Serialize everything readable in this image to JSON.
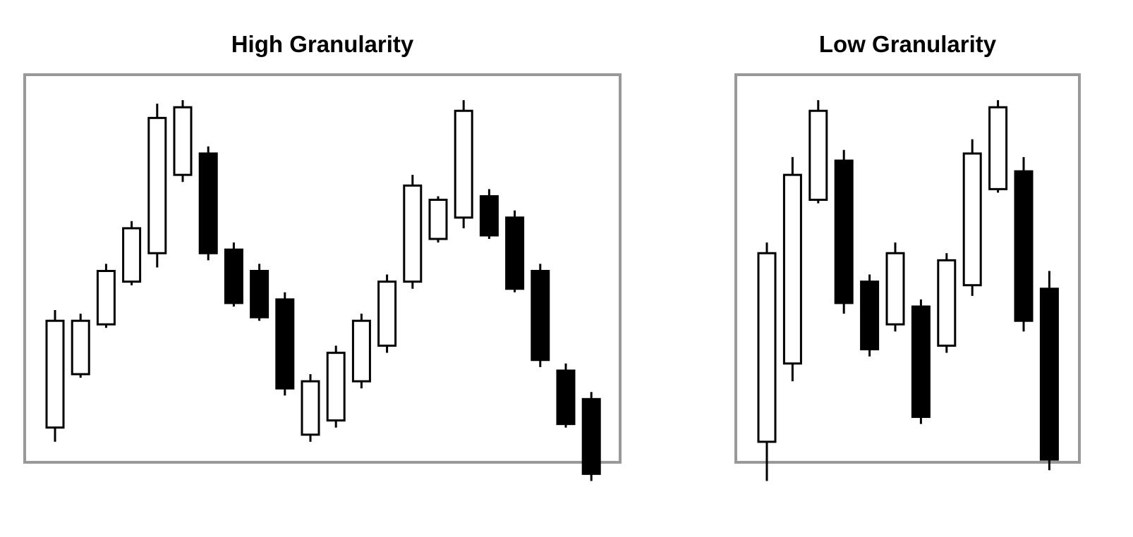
{
  "colors": {
    "frame": "#999999",
    "bullish_fill": "#ffffff",
    "bearish_fill": "#000000",
    "outline": "#000000"
  },
  "chart_data": [
    {
      "type": "candlestick",
      "title": "High Granularity",
      "ylim": [
        0,
        100
      ],
      "grid": false,
      "candles": [
        {
          "open": 6.0,
          "close": 36.0,
          "high": 39.0,
          "low": 2.0
        },
        {
          "open": 21.0,
          "close": 36.0,
          "high": 38.0,
          "low": 20.0
        },
        {
          "open": 35.0,
          "close": 50.0,
          "high": 52.0,
          "low": 34.0
        },
        {
          "open": 47.0,
          "close": 62.0,
          "high": 64.0,
          "low": 46.0
        },
        {
          "open": 55.0,
          "close": 93.0,
          "high": 97.0,
          "low": 51.0
        },
        {
          "open": 77.0,
          "close": 96.0,
          "high": 98.0,
          "low": 75.0
        },
        {
          "open": 83.0,
          "close": 55.0,
          "high": 85.0,
          "low": 53.0
        },
        {
          "open": 56.0,
          "close": 41.0,
          "high": 58.0,
          "low": 40.0
        },
        {
          "open": 50.0,
          "close": 37.0,
          "high": 52.0,
          "low": 36.0
        },
        {
          "open": 42.0,
          "close": 17.0,
          "high": 44.0,
          "low": 15.0
        },
        {
          "open": 4.0,
          "close": 19.0,
          "high": 21.0,
          "low": 2.0
        },
        {
          "open": 8.0,
          "close": 27.0,
          "high": 29.0,
          "low": 6.0
        },
        {
          "open": 19.0,
          "close": 36.0,
          "high": 38.0,
          "low": 17.0
        },
        {
          "open": 29.0,
          "close": 47.0,
          "high": 49.0,
          "low": 27.0
        },
        {
          "open": 47.0,
          "close": 74.0,
          "high": 77.0,
          "low": 45.0
        },
        {
          "open": 59.0,
          "close": 70.0,
          "high": 71.0,
          "low": 58.0
        },
        {
          "open": 65.0,
          "close": 95.0,
          "high": 98.0,
          "low": 62.0
        },
        {
          "open": 71.0,
          "close": 60.0,
          "high": 73.0,
          "low": 59.0
        },
        {
          "open": 65.0,
          "close": 45.0,
          "high": 67.0,
          "low": 44.0
        },
        {
          "open": 50.0,
          "close": 25.0,
          "high": 52.0,
          "low": 23.0
        },
        {
          "open": 22.0,
          "close": 7.0,
          "high": 24.0,
          "low": 6.0
        },
        {
          "open": 14.0,
          "close": -7.0,
          "high": 16.0,
          "low": -9.0
        }
      ]
    },
    {
      "type": "candlestick",
      "title": "Low Granularity",
      "ylim": [
        0,
        100
      ],
      "grid": false,
      "candles": [
        {
          "open": 2.0,
          "close": 55.0,
          "high": 58.0,
          "low": -9.0
        },
        {
          "open": 24.0,
          "close": 77.0,
          "high": 82.0,
          "low": 19.0
        },
        {
          "open": 70.0,
          "close": 95.0,
          "high": 98.0,
          "low": 69.0
        },
        {
          "open": 81.0,
          "close": 41.0,
          "high": 84.0,
          "low": 38.0
        },
        {
          "open": 47.0,
          "close": 28.0,
          "high": 49.0,
          "low": 26.0
        },
        {
          "open": 35.0,
          "close": 55.0,
          "high": 58.0,
          "low": 33.0
        },
        {
          "open": 40.0,
          "close": 9.0,
          "high": 42.0,
          "low": 7.0
        },
        {
          "open": 29.0,
          "close": 53.0,
          "high": 55.0,
          "low": 27.0
        },
        {
          "open": 46.0,
          "close": 83.0,
          "high": 87.0,
          "low": 43.0
        },
        {
          "open": 73.0,
          "close": 96.0,
          "high": 98.0,
          "low": 72.0
        },
        {
          "open": 78.0,
          "close": 36.0,
          "high": 82.0,
          "low": 33.0
        },
        {
          "open": 45.0,
          "close": -3.0,
          "high": 50.0,
          "low": -6.0
        }
      ]
    }
  ]
}
